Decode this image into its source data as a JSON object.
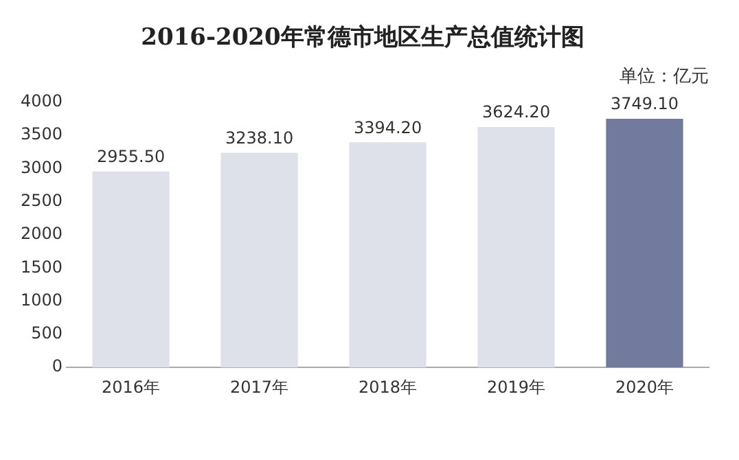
{
  "chart_data": {
    "type": "bar",
    "title": "2016-2020年常德市地区生产总值统计图",
    "annotations": [
      "单位：亿元"
    ],
    "categories": [
      "2016年",
      "2017年",
      "2018年",
      "2019年",
      "2020年"
    ],
    "values": [
      2955.5,
      3238.1,
      3394.2,
      3624.2,
      3749.1
    ],
    "colors": [
      "#dfe1ea",
      "#dfe1ea",
      "#dfe1ea",
      "#dfe1ea",
      "#727a9e"
    ],
    "value_labels": [
      "2955.50",
      "3238.10",
      "3394.20",
      "3624.20",
      "3749.10"
    ],
    "ylim": [
      0,
      4000
    ],
    "yticks": [
      0,
      500,
      1000,
      1500,
      2000,
      2500,
      3000,
      3500,
      4000
    ],
    "grid": false,
    "legend": false
  }
}
